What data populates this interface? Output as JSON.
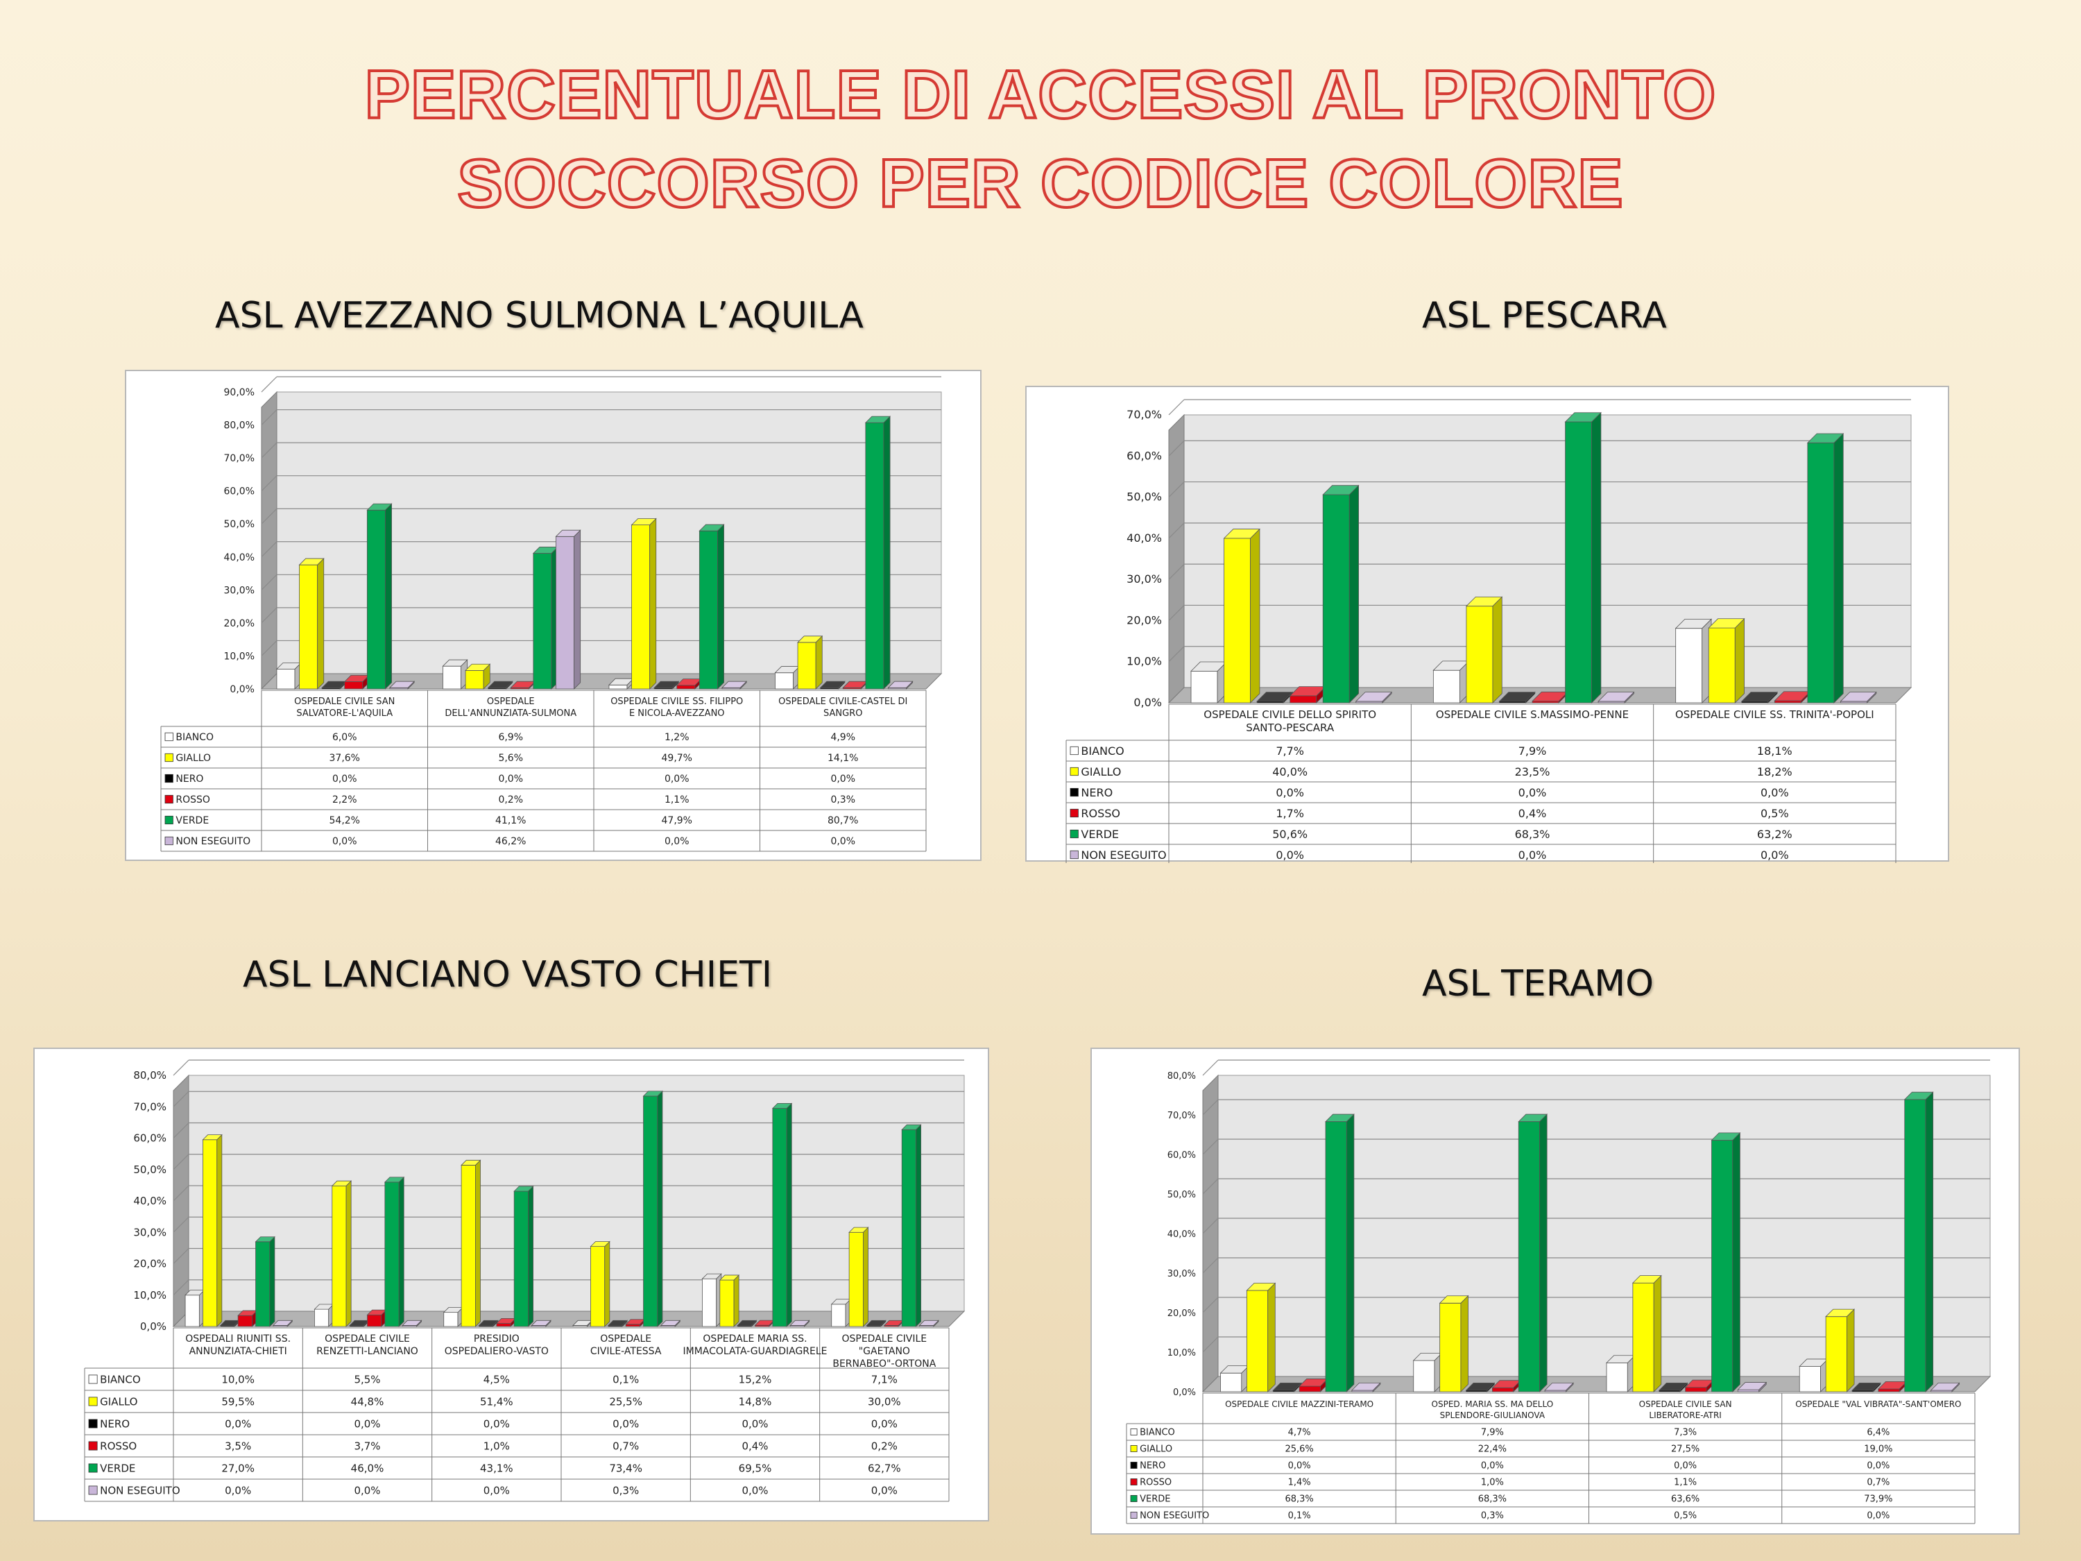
{
  "title_lines": [
    "PERCENTUALE DI ACCESSI AL PRONTO",
    "SOCCORSO PER CODICE COLORE"
  ],
  "sections": [
    "ASL AVEZZANO SULMONA L’AQUILA",
    "ASL PESCARA",
    "ASL LANCIANO VASTO CHIETI",
    "ASL TERAMO"
  ],
  "series_colors": {
    "BIANCO": "#ffffff",
    "GIALLO": "#ffff00",
    "NERO": "#000000",
    "ROSSO": "#e00010",
    "VERDE": "#00a651",
    "NON ESEGUITO": "#c9b6d9"
  },
  "chart_data": [
    {
      "type": "bar",
      "ylim": [
        0,
        90
      ],
      "yticks": [
        "0,0%",
        "10,0%",
        "20,0%",
        "30,0%",
        "40,0%",
        "50,0%",
        "60,0%",
        "70,0%",
        "80,0%",
        "90,0%"
      ],
      "categories": [
        "OSPEDALE CIVILE SAN SALVATORE-L'AQUILA",
        "OSPEDALE DELL'ANNUNZIATA-SULMONA",
        "OSPEDALE CIVILE SS. FILIPPO E NICOLA-AVEZZANO",
        "OSPEDALE CIVILE-CASTEL DI SANGRO"
      ],
      "series": [
        {
          "name": "BIANCO",
          "values": [
            6.0,
            6.9,
            1.2,
            4.9
          ],
          "labels": [
            "6,0%",
            "6,9%",
            "1,2%",
            "4,9%"
          ]
        },
        {
          "name": "GIALLO",
          "values": [
            37.6,
            5.6,
            49.7,
            14.1
          ],
          "labels": [
            "37,6%",
            "5,6%",
            "49,7%",
            "14,1%"
          ]
        },
        {
          "name": "NERO",
          "values": [
            0.0,
            0.0,
            0.0,
            0.0
          ],
          "labels": [
            "0,0%",
            "0,0%",
            "0,0%",
            "0,0%"
          ]
        },
        {
          "name": "ROSSO",
          "values": [
            2.2,
            0.2,
            1.1,
            0.3
          ],
          "labels": [
            "2,2%",
            "0,2%",
            "1,1%",
            "0,3%"
          ]
        },
        {
          "name": "VERDE",
          "values": [
            54.2,
            41.1,
            47.9,
            80.7
          ],
          "labels": [
            "54,2%",
            "41,1%",
            "47,9%",
            "80,7%"
          ]
        },
        {
          "name": "NON ESEGUITO",
          "values": [
            0.0,
            46.2,
            0.0,
            0.0
          ],
          "labels": [
            "0,0%",
            "46,2%",
            "0,0%",
            "0,0%"
          ]
        }
      ]
    },
    {
      "type": "bar",
      "ylim": [
        0,
        70
      ],
      "yticks": [
        "0,0%",
        "10,0%",
        "20,0%",
        "30,0%",
        "40,0%",
        "50,0%",
        "60,0%",
        "70,0%"
      ],
      "categories": [
        "OSPEDALE CIVILE DELLO SPIRITO SANTO-PESCARA",
        "OSPEDALE CIVILE S.MASSIMO-PENNE",
        "OSPEDALE CIVILE SS. TRINITA'-POPOLI"
      ],
      "series": [
        {
          "name": "BIANCO",
          "values": [
            7.7,
            7.9,
            18.1
          ],
          "labels": [
            "7,7%",
            "7,9%",
            "18,1%"
          ]
        },
        {
          "name": "GIALLO",
          "values": [
            40.0,
            23.5,
            18.2
          ],
          "labels": [
            "40,0%",
            "23,5%",
            "18,2%"
          ]
        },
        {
          "name": "NERO",
          "values": [
            0.0,
            0.0,
            0.0
          ],
          "labels": [
            "0,0%",
            "0,0%",
            "0,0%"
          ]
        },
        {
          "name": "ROSSO",
          "values": [
            1.7,
            0.4,
            0.5
          ],
          "labels": [
            "1,7%",
            "0,4%",
            "0,5%"
          ]
        },
        {
          "name": "VERDE",
          "values": [
            50.6,
            68.3,
            63.2
          ],
          "labels": [
            "50,6%",
            "68,3%",
            "63,2%"
          ]
        },
        {
          "name": "NON ESEGUITO",
          "values": [
            0.0,
            0.0,
            0.0
          ],
          "labels": [
            "0,0%",
            "0,0%",
            "0,0%"
          ]
        }
      ]
    },
    {
      "type": "bar",
      "ylim": [
        0,
        80
      ],
      "yticks": [
        "0,0%",
        "10,0%",
        "20,0%",
        "30,0%",
        "40,0%",
        "50,0%",
        "60,0%",
        "70,0%",
        "80,0%"
      ],
      "categories": [
        "OSPEDALI RIUNITI SS. ANNUNZIATA-CHIETI",
        "OSPEDALE CIVILE RENZETTI-LANCIANO",
        "PRESIDIO OSPEDALIERO-VASTO",
        "OSPEDALE CIVILE-ATESSA",
        "OSPEDALE MARIA SS. IMMACOLATA-GUARDIAGRELE",
        "OSPEDALE CIVILE \"GAETANO BERNABEO\"-ORTONA"
      ],
      "series": [
        {
          "name": "BIANCO",
          "values": [
            10.0,
            5.5,
            4.5,
            0.1,
            15.2,
            7.1
          ],
          "labels": [
            "10,0%",
            "5,5%",
            "4,5%",
            "0,1%",
            "15,2%",
            "7,1%"
          ]
        },
        {
          "name": "GIALLO",
          "values": [
            59.5,
            44.8,
            51.4,
            25.5,
            14.8,
            30.0
          ],
          "labels": [
            "59,5%",
            "44,8%",
            "51,4%",
            "25,5%",
            "14,8%",
            "30,0%"
          ]
        },
        {
          "name": "NERO",
          "values": [
            0.0,
            0.0,
            0.0,
            0.0,
            0.0,
            0.0
          ],
          "labels": [
            "0,0%",
            "0,0%",
            "0,0%",
            "0,0%",
            "0,0%",
            "0,0%"
          ]
        },
        {
          "name": "ROSSO",
          "values": [
            3.5,
            3.7,
            1.0,
            0.7,
            0.4,
            0.2
          ],
          "labels": [
            "3,5%",
            "3,7%",
            "1,0%",
            "0,7%",
            "0,4%",
            "0,2%"
          ]
        },
        {
          "name": "VERDE",
          "values": [
            27.0,
            46.0,
            43.1,
            73.4,
            69.5,
            62.7
          ],
          "labels": [
            "27,0%",
            "46,0%",
            "43,1%",
            "73,4%",
            "69,5%",
            "62,7%"
          ]
        },
        {
          "name": "NON ESEGUITO",
          "values": [
            0.0,
            0.0,
            0.0,
            0.3,
            0.0,
            0.0
          ],
          "labels": [
            "0,0%",
            "0,0%",
            "0,0%",
            "0,3%",
            "0,0%",
            "0,0%"
          ]
        }
      ]
    },
    {
      "type": "bar",
      "ylim": [
        0,
        80
      ],
      "yticks": [
        "0,0%",
        "10,0%",
        "20,0%",
        "30,0%",
        "40,0%",
        "50,0%",
        "60,0%",
        "70,0%",
        "80,0%"
      ],
      "categories": [
        "OSPEDALE CIVILE MAZZINI-TERAMO",
        "OSPED. MARIA SS. MA DELLO SPLENDORE-GIULIANOVA",
        "OSPEDALE CIVILE SAN LIBERATORE-ATRI",
        "OSPEDALE \"VAL VIBRATA\"-SANT'OMERO"
      ],
      "series": [
        {
          "name": "BIANCO",
          "values": [
            4.7,
            7.9,
            7.3,
            6.4
          ],
          "labels": [
            "4,7%",
            "7,9%",
            "7,3%",
            "6,4%"
          ]
        },
        {
          "name": "GIALLO",
          "values": [
            25.6,
            22.4,
            27.5,
            19.0
          ],
          "labels": [
            "25,6%",
            "22,4%",
            "27,5%",
            "19,0%"
          ]
        },
        {
          "name": "NERO",
          "values": [
            0.0,
            0.0,
            0.0,
            0.0
          ],
          "labels": [
            "0,0%",
            "0,0%",
            "0,0%",
            "0,0%"
          ]
        },
        {
          "name": "ROSSO",
          "values": [
            1.4,
            1.0,
            1.1,
            0.7
          ],
          "labels": [
            "1,4%",
            "1,0%",
            "1,1%",
            "0,7%"
          ]
        },
        {
          "name": "VERDE",
          "values": [
            68.3,
            68.3,
            63.6,
            73.9
          ],
          "labels": [
            "68,3%",
            "68,3%",
            "63,6%",
            "73,9%"
          ]
        },
        {
          "name": "NON ESEGUITO",
          "values": [
            0.1,
            0.3,
            0.5,
            0.0
          ],
          "labels": [
            "0,1%",
            "0,3%",
            "0,5%",
            "0,0%"
          ]
        }
      ]
    }
  ]
}
